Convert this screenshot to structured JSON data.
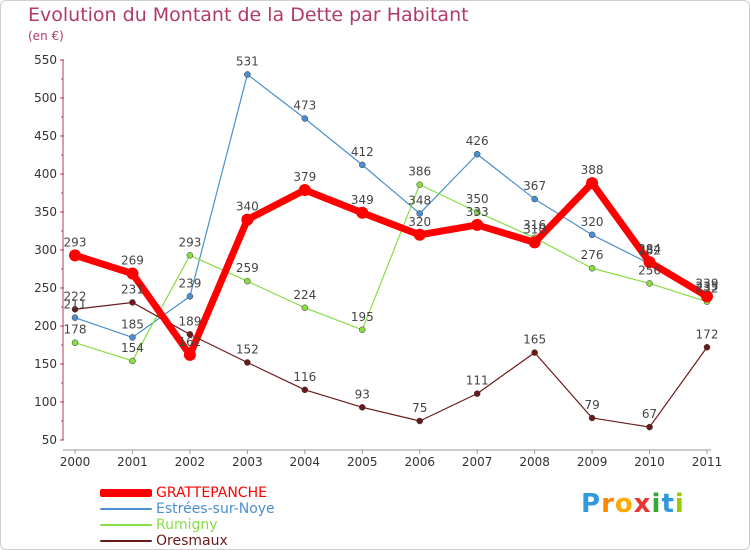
{
  "chart_data": {
    "type": "line",
    "title": "Evolution du Montant de la Dette par Habitant",
    "subtitle": "(en €)",
    "x": [
      "2000",
      "2001",
      "2002",
      "2003",
      "2004",
      "2005",
      "2006",
      "2007",
      "2008",
      "2009",
      "2010",
      "2011"
    ],
    "yticks": [
      50,
      100,
      150,
      200,
      250,
      300,
      350,
      400,
      450,
      500,
      550
    ],
    "ylim": [
      50,
      550
    ],
    "grid": false,
    "legend_position": "bottom-left",
    "series": [
      {
        "name": "GRATTEPANCHE",
        "color": "#ff0000",
        "emphasis": true,
        "values": [
          293,
          269,
          162,
          340,
          379,
          349,
          320,
          333,
          310,
          388,
          284,
          239
        ],
        "labels": [
          "293",
          "269",
          "162",
          "340",
          "379",
          "349",
          "320",
          "333",
          "310",
          "388",
          "284",
          "239"
        ]
      },
      {
        "name": "Estrées-sur-Noye",
        "color": "#4a8fcf",
        "values": [
          211,
          185,
          239,
          531,
          473,
          412,
          348,
          426,
          367,
          320,
          282,
          235
        ],
        "labels": [
          "211",
          "185",
          "239",
          "531",
          "473",
          "412",
          "348",
          "426",
          "367",
          "320",
          "282",
          "235"
        ]
      },
      {
        "name": "Rumigny",
        "color": "#88dd44",
        "values": [
          178,
          154,
          293,
          259,
          224,
          195,
          386,
          350,
          316,
          276,
          256,
          232
        ],
        "labels": [
          "178",
          "154",
          "293",
          "259",
          "224",
          "195",
          "386",
          "350",
          "316",
          "276",
          "256",
          "232"
        ]
      },
      {
        "name": "Oresmaux",
        "color": "#6b1a1a",
        "values": [
          222,
          231,
          189,
          152,
          116,
          93,
          75,
          111,
          165,
          79,
          67,
          172
        ],
        "labels": [
          "222",
          "231",
          "189",
          "152",
          "116",
          "93",
          "75",
          "111",
          "165",
          "79",
          "67",
          "172"
        ]
      }
    ]
  },
  "logo": {
    "letters": [
      "P",
      "r",
      "o",
      "x",
      "i",
      "t",
      "i"
    ],
    "colors": [
      "#3399dd",
      "#ff8800",
      "#ffaa00",
      "#ee3333",
      "#33aa33",
      "#3399dd",
      "#99cc00"
    ]
  }
}
